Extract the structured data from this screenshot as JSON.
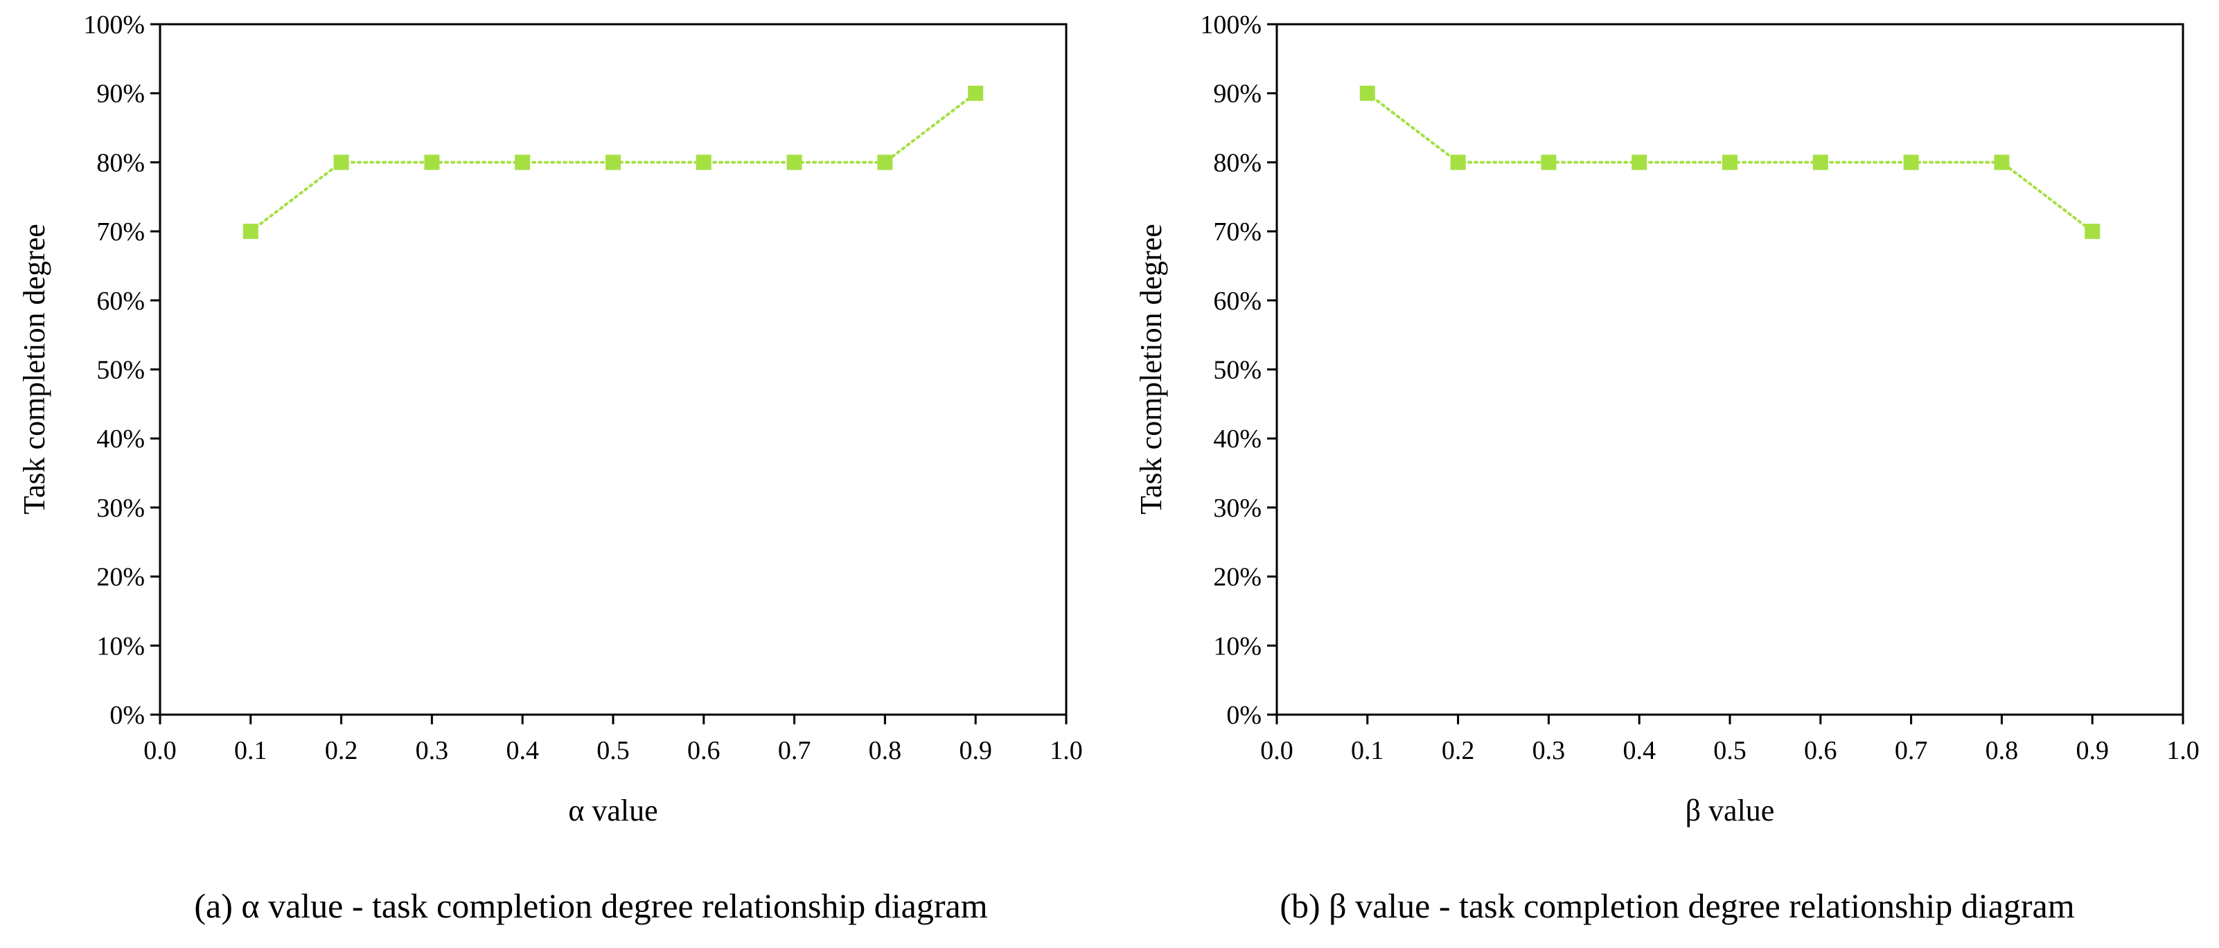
{
  "chart_data": [
    {
      "type": "line",
      "title": "",
      "caption": "(a) α value - task completion degree relationship diagram",
      "xlabel": "α value",
      "ylabel": "Task completion degree",
      "xlim": [
        0.0,
        1.0
      ],
      "ylim": [
        0,
        100
      ],
      "x_ticks": [
        "0.0",
        "0.1",
        "0.2",
        "0.3",
        "0.4",
        "0.5",
        "0.6",
        "0.7",
        "0.8",
        "0.9",
        "1.0"
      ],
      "y_ticks": [
        "0%",
        "10%",
        "20%",
        "30%",
        "40%",
        "50%",
        "60%",
        "70%",
        "80%",
        "90%",
        "100%"
      ],
      "grid": false,
      "series": [
        {
          "name": "Task completion degree",
          "x": [
            0.1,
            0.2,
            0.3,
            0.4,
            0.5,
            0.6,
            0.7,
            0.8,
            0.9
          ],
          "values": [
            70,
            80,
            80,
            80,
            80,
            80,
            80,
            80,
            90
          ],
          "color": "#a5e043",
          "marker": "square",
          "line_style": "dotted"
        }
      ]
    },
    {
      "type": "line",
      "title": "",
      "caption": "(b) β value - task completion degree relationship diagram",
      "xlabel": "β value",
      "ylabel": "Task completion degree",
      "xlim": [
        0.0,
        1.0
      ],
      "ylim": [
        0,
        100
      ],
      "x_ticks": [
        "0.0",
        "0.1",
        "0.2",
        "0.3",
        "0.4",
        "0.5",
        "0.6",
        "0.7",
        "0.8",
        "0.9",
        "1.0"
      ],
      "y_ticks": [
        "0%",
        "10%",
        "20%",
        "30%",
        "40%",
        "50%",
        "60%",
        "70%",
        "80%",
        "90%",
        "100%"
      ],
      "grid": false,
      "series": [
        {
          "name": "Task completion degree",
          "x": [
            0.1,
            0.2,
            0.3,
            0.4,
            0.5,
            0.6,
            0.7,
            0.8,
            0.9
          ],
          "values": [
            90,
            80,
            80,
            80,
            80,
            80,
            80,
            80,
            70
          ],
          "color": "#a5e043",
          "marker": "square",
          "line_style": "dotted"
        }
      ]
    }
  ]
}
